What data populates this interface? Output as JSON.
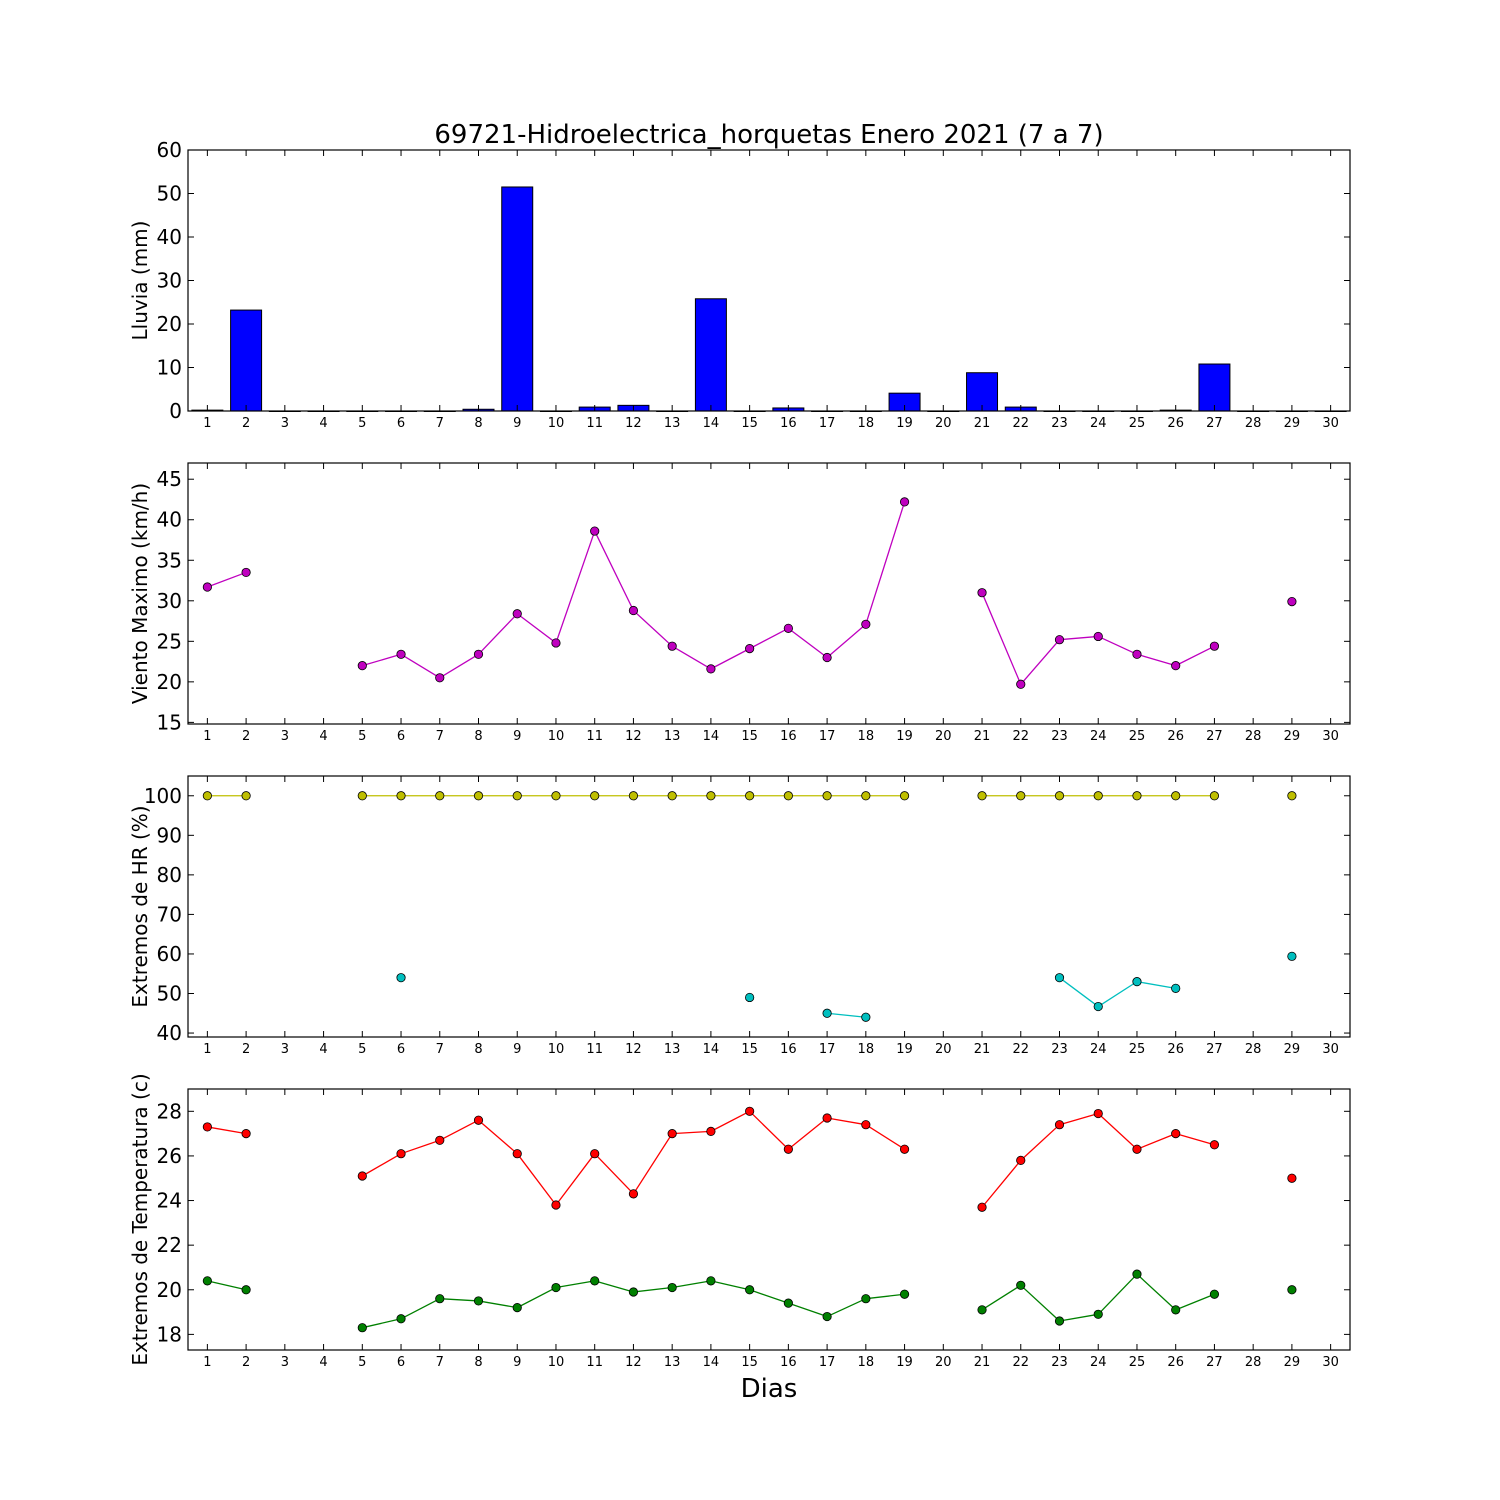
{
  "chart_data": {
    "title": "69721-Hidroelectrica_horquetas Enero 2021  (7 a 7)",
    "xlabel": "Dias",
    "x_ticks": [
      1,
      2,
      3,
      4,
      5,
      6,
      7,
      8,
      9,
      10,
      11,
      12,
      13,
      14,
      15,
      16,
      17,
      18,
      19,
      20,
      21,
      22,
      23,
      24,
      25,
      26,
      27,
      28,
      29,
      30
    ],
    "panels": [
      {
        "type": "bar",
        "ylabel": "Lluvia (mm)",
        "ylim": [
          0,
          60
        ],
        "yticks": [
          0,
          10,
          20,
          30,
          40,
          50,
          60
        ],
        "colors": {
          "fill": "#0000ff",
          "edge": "#000000"
        },
        "series": [
          {
            "x": [
              1,
              2,
              3,
              4,
              5,
              6,
              7,
              8,
              9,
              10,
              11,
              12,
              13,
              14,
              15,
              16,
              17,
              18,
              19,
              20,
              21,
              22,
              23,
              24,
              25,
              26,
              27,
              28,
              29,
              30
            ],
            "values": [
              0.2,
              23.2,
              0,
              0,
              0,
              0,
              0,
              0.4,
              51.5,
              0,
              0.9,
              1.3,
              0,
              25.8,
              0,
              0.7,
              0,
              0,
              4.1,
              0,
              8.8,
              0.9,
              0,
              0,
              0,
              0.2,
              10.8,
              0,
              0,
              0
            ]
          }
        ]
      },
      {
        "type": "line",
        "ylabel": "Viento Maximo (km/h)",
        "ylim": [
          14.8,
          47
        ],
        "yticks": [
          15,
          20,
          25,
          30,
          35,
          40,
          45
        ],
        "series": [
          {
            "color": "#bf00bf",
            "x": [
              1,
              2,
              3,
              4,
              5,
              6,
              7,
              8,
              9,
              10,
              11,
              12,
              13,
              14,
              15,
              16,
              17,
              18,
              19,
              20,
              21,
              22,
              23,
              24,
              25,
              26,
              27,
              28,
              29,
              30
            ],
            "values": [
              31.7,
              33.5,
              null,
              null,
              22.0,
              23.4,
              20.5,
              23.4,
              28.4,
              24.8,
              38.6,
              28.8,
              24.4,
              21.6,
              24.1,
              26.6,
              23.0,
              27.1,
              42.2,
              null,
              31.0,
              19.7,
              25.2,
              25.6,
              23.4,
              22.0,
              24.4,
              null,
              29.9,
              null
            ]
          }
        ]
      },
      {
        "type": "line",
        "ylabel": "Extremos de HR (%)",
        "ylim": [
          39,
          105
        ],
        "yticks": [
          40,
          50,
          60,
          70,
          80,
          90,
          100
        ],
        "series": [
          {
            "color": "#bfbf00",
            "x": [
              1,
              2,
              3,
              4,
              5,
              6,
              7,
              8,
              9,
              10,
              11,
              12,
              13,
              14,
              15,
              16,
              17,
              18,
              19,
              20,
              21,
              22,
              23,
              24,
              25,
              26,
              27,
              28,
              29,
              30
            ],
            "values": [
              100,
              100,
              null,
              null,
              100,
              100,
              100,
              100,
              100,
              100,
              100,
              100,
              100,
              100,
              100,
              100,
              100,
              100,
              100,
              null,
              100,
              100,
              100,
              100,
              100,
              100,
              100,
              null,
              100,
              null
            ]
          },
          {
            "color": "#00bfbf",
            "x": [
              1,
              2,
              3,
              4,
              5,
              6,
              7,
              8,
              9,
              10,
              11,
              12,
              13,
              14,
              15,
              16,
              17,
              18,
              19,
              20,
              21,
              22,
              23,
              24,
              25,
              26,
              27,
              28,
              29,
              30
            ],
            "values": [
              null,
              null,
              null,
              null,
              null,
              54,
              null,
              null,
              null,
              null,
              null,
              null,
              null,
              null,
              49,
              null,
              45,
              44,
              null,
              null,
              null,
              null,
              54,
              46.7,
              53,
              51.3,
              null,
              null,
              59.4,
              null
            ]
          }
        ]
      },
      {
        "type": "line",
        "ylabel": "Extremos de Temperatura (c)",
        "ylim": [
          17.3,
          29
        ],
        "yticks": [
          18,
          20,
          22,
          24,
          26,
          28
        ],
        "series": [
          {
            "color": "#ff0000",
            "x": [
              1,
              2,
              3,
              4,
              5,
              6,
              7,
              8,
              9,
              10,
              11,
              12,
              13,
              14,
              15,
              16,
              17,
              18,
              19,
              20,
              21,
              22,
              23,
              24,
              25,
              26,
              27,
              28,
              29,
              30
            ],
            "values": [
              27.3,
              27.0,
              null,
              null,
              25.1,
              26.1,
              26.7,
              27.6,
              26.1,
              23.8,
              26.1,
              24.3,
              27.0,
              27.1,
              28.0,
              26.3,
              27.7,
              27.4,
              26.3,
              null,
              23.7,
              25.8,
              27.4,
              27.9,
              26.3,
              27.0,
              26.5,
              null,
              25.0,
              null
            ]
          },
          {
            "color": "#008000",
            "x": [
              1,
              2,
              3,
              4,
              5,
              6,
              7,
              8,
              9,
              10,
              11,
              12,
              13,
              14,
              15,
              16,
              17,
              18,
              19,
              20,
              21,
              22,
              23,
              24,
              25,
              26,
              27,
              28,
              29,
              30
            ],
            "values": [
              20.4,
              20.0,
              null,
              null,
              18.3,
              18.7,
              19.6,
              19.5,
              19.2,
              20.1,
              20.4,
              19.9,
              20.1,
              20.4,
              20.0,
              19.4,
              18.8,
              19.6,
              19.8,
              null,
              19.1,
              20.2,
              18.6,
              18.9,
              20.7,
              19.1,
              19.8,
              null,
              20.0,
              null
            ]
          }
        ]
      }
    ]
  }
}
